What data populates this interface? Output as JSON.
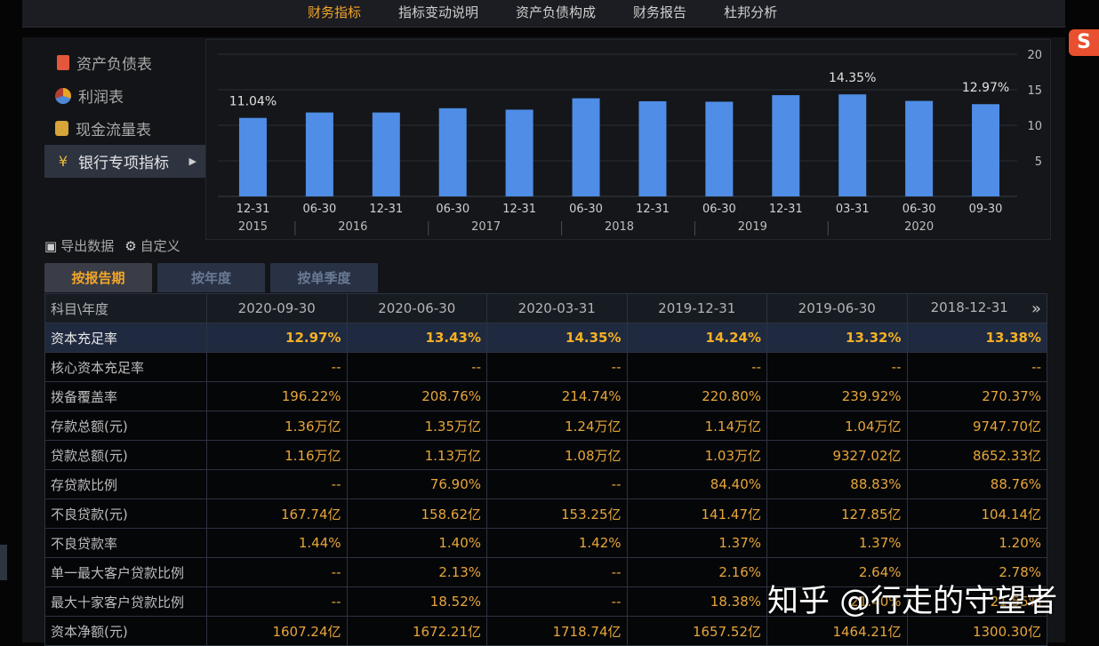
{
  "top_nav": [
    "财务指标",
    "指标变动说明",
    "资产负债构成",
    "财务报告",
    "杜邦分析"
  ],
  "top_nav_active": 0,
  "sidebar": {
    "items": [
      {
        "label": "资产负债表",
        "icon": "document-icon"
      },
      {
        "label": "利润表",
        "icon": "pie-chart-icon"
      },
      {
        "label": "现金流量表",
        "icon": "cash-icon"
      },
      {
        "label": "银行专项指标",
        "icon": "yen-icon"
      }
    ],
    "active": 3
  },
  "toolbar": {
    "export_label": "导出数据",
    "custom_label": "自定义"
  },
  "tabs": [
    "按报告期",
    "按年度",
    "按单季度"
  ],
  "active_tab": 0,
  "chart_data": {
    "type": "bar",
    "categories": [
      "12-31",
      "06-30",
      "12-31",
      "06-30",
      "12-31",
      "06-30",
      "12-31",
      "06-30",
      "12-31",
      "03-31",
      "06-30",
      "09-30"
    ],
    "years": [
      {
        "label": "2015",
        "from": 0,
        "to": 0
      },
      {
        "label": "2016",
        "from": 1,
        "to": 2
      },
      {
        "label": "2017",
        "from": 3,
        "to": 4
      },
      {
        "label": "2018",
        "from": 5,
        "to": 6
      },
      {
        "label": "2019",
        "from": 7,
        "to": 8
      },
      {
        "label": "2020",
        "from": 9,
        "to": 11
      }
    ],
    "values": [
      11.04,
      11.8,
      11.8,
      12.4,
      12.2,
      13.8,
      13.38,
      13.32,
      14.24,
      14.35,
      13.43,
      12.97
    ],
    "data_labels": {
      "0": "11.04%",
      "9": "14.35%",
      "11": "12.97%"
    },
    "yticks": [
      5,
      10,
      15,
      20
    ],
    "ylim": [
      0,
      21
    ],
    "bar_color": "#4f8de6",
    "grid": true
  },
  "table": {
    "header_label": "科目\\年度",
    "columns": [
      "2020-09-30",
      "2020-06-30",
      "2020-03-31",
      "2019-12-31",
      "2019-06-30",
      "2018-12-31"
    ],
    "rows": [
      {
        "label": "资本充足率",
        "values": [
          "12.97%",
          "13.43%",
          "14.35%",
          "14.24%",
          "13.32%",
          "13.38%"
        ]
      },
      {
        "label": "核心资本充足率",
        "values": [
          "--",
          "--",
          "--",
          "--",
          "--",
          "--"
        ]
      },
      {
        "label": "拨备覆盖率",
        "values": [
          "196.22%",
          "208.76%",
          "214.74%",
          "220.80%",
          "239.92%",
          "270.37%"
        ]
      },
      {
        "label": "存款总额(元)",
        "values": [
          "1.36万亿",
          "1.35万亿",
          "1.24万亿",
          "1.14万亿",
          "1.04万亿",
          "9747.70亿"
        ]
      },
      {
        "label": "贷款总额(元)",
        "values": [
          "1.16万亿",
          "1.13万亿",
          "1.08万亿",
          "1.03万亿",
          "9327.02亿",
          "8652.33亿"
        ]
      },
      {
        "label": "存贷款比例",
        "values": [
          "--",
          "76.90%",
          "--",
          "84.40%",
          "88.83%",
          "88.76%"
        ]
      },
      {
        "label": "不良贷款(元)",
        "values": [
          "167.74亿",
          "158.62亿",
          "153.25亿",
          "141.47亿",
          "127.85亿",
          "104.14亿"
        ]
      },
      {
        "label": "不良贷款率",
        "values": [
          "1.44%",
          "1.40%",
          "1.42%",
          "1.37%",
          "1.37%",
          "1.20%"
        ]
      },
      {
        "label": "单一最大客户贷款比例",
        "values": [
          "--",
          "2.13%",
          "--",
          "2.16%",
          "2.64%",
          "2.78%"
        ]
      },
      {
        "label": "最大十家客户贷款比例",
        "values": [
          "--",
          "18.52%",
          "--",
          "18.38%",
          "21.40%",
          "21.55%"
        ]
      },
      {
        "label": "资本净额(元)",
        "values": [
          "1607.24亿",
          "1672.21亿",
          "1718.74亿",
          "1657.52亿",
          "1464.21亿",
          "1300.30亿"
        ]
      }
    ]
  },
  "watermark": "知乎 @行走的守望者",
  "colors": {
    "accent": "#f3a529",
    "bar": "#4f8de6",
    "value": "#e7a63a"
  }
}
